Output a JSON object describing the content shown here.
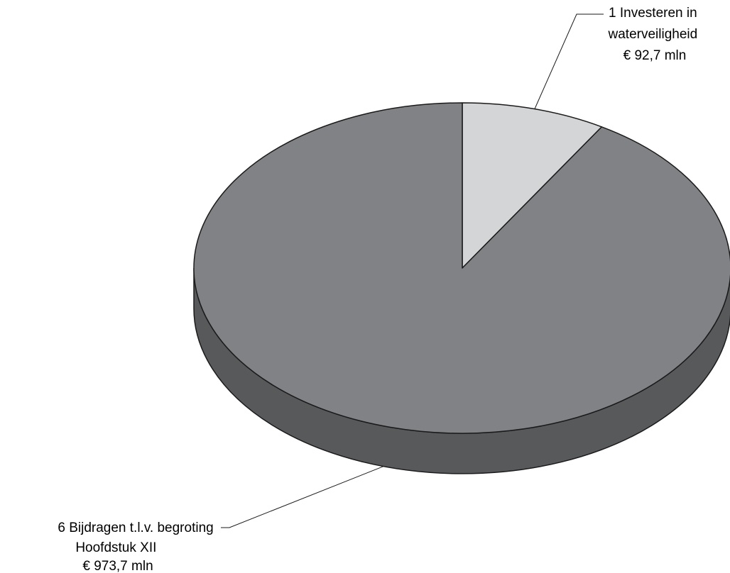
{
  "chart_data": {
    "type": "pie",
    "title": "",
    "slices": [
      {
        "label_lines": [
          "1 Investeren in",
          "waterveiligheid",
          "€ 92,7 mln"
        ],
        "value": 92.7,
        "color": "#d4d5d7"
      },
      {
        "label_lines": [
          "6 Bijdragen t.l.v. begroting",
          "Hoofdstuk XII",
          "€ 973,7 mln"
        ],
        "value": 973.7,
        "color": "#818285"
      }
    ],
    "side_color": "#58595b",
    "outline_color": "#1a1a1a",
    "style": "3d"
  }
}
